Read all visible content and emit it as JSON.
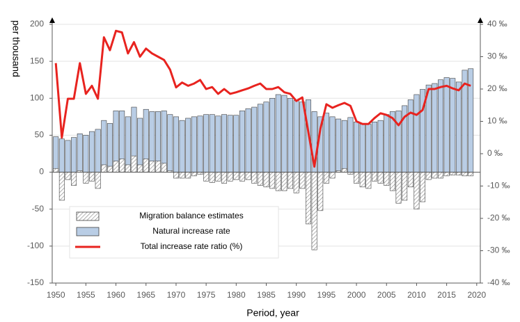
{
  "chart_data": {
    "type": "bar-line",
    "ylabel": "per thousand",
    "xlabel": "Period, year",
    "x": [
      1950,
      1951,
      1952,
      1953,
      1954,
      1955,
      1956,
      1957,
      1958,
      1959,
      1960,
      1961,
      1962,
      1963,
      1964,
      1965,
      1966,
      1967,
      1968,
      1969,
      1970,
      1971,
      1972,
      1973,
      1974,
      1975,
      1976,
      1977,
      1978,
      1979,
      1980,
      1981,
      1982,
      1983,
      1984,
      1985,
      1986,
      1987,
      1988,
      1989,
      1990,
      1991,
      1992,
      1993,
      1994,
      1995,
      1996,
      1997,
      1998,
      1999,
      2000,
      2001,
      2002,
      2003,
      2004,
      2005,
      2006,
      2007,
      2008,
      2009,
      2010,
      2011,
      2012,
      2013,
      2014,
      2015,
      2016,
      2017,
      2018,
      2019
    ],
    "xlim": [
      1949.4,
      2020.6
    ],
    "xticks": [
      1950,
      1955,
      1960,
      1965,
      1970,
      1975,
      1980,
      1985,
      1990,
      1995,
      2000,
      2005,
      2010,
      2015,
      2020
    ],
    "ylim": [
      -150,
      200
    ],
    "yticks": [
      -150,
      -100,
      -50,
      0,
      50,
      100,
      150,
      200
    ],
    "y2lim": [
      -40,
      40
    ],
    "y2ticks": [
      {
        "value": -40,
        "label": "-40 ‰"
      },
      {
        "value": -30,
        "label": "-30 ‰"
      },
      {
        "value": -20,
        "label": "-20 ‰"
      },
      {
        "value": -10,
        "label": "-10 ‰"
      },
      {
        "value": 0,
        "label": "0 ‰"
      },
      {
        "value": 10,
        "label": "10 ‰"
      },
      {
        "value": 20,
        "label": "20 ‰"
      },
      {
        "value": 30,
        "label": "30 ‰"
      },
      {
        "value": 40,
        "label": "40 ‰"
      }
    ],
    "grid": true,
    "legend_position": "lower left",
    "series": [
      {
        "name": "Migration balance estimates",
        "type": "hatched-bar",
        "color": "#7f7f7f",
        "values": [
          5,
          -38,
          -10,
          -18,
          2,
          -15,
          -12,
          -22,
          10,
          8,
          15,
          18,
          10,
          22,
          10,
          18,
          15,
          15,
          12,
          2,
          -8,
          -8,
          -8,
          -5,
          -3,
          -12,
          -14,
          -12,
          -15,
          -12,
          -10,
          -12,
          -10,
          -15,
          -18,
          -20,
          -22,
          -25,
          -25,
          -22,
          -28,
          -22,
          -70,
          -105,
          -52,
          -15,
          -8,
          2,
          5,
          -3,
          -15,
          -20,
          -22,
          -12,
          -15,
          -18,
          -25,
          -42,
          -38,
          -20,
          -50,
          -40,
          -10,
          -8,
          -8,
          -5,
          -4,
          -4,
          -5,
          -5
        ]
      },
      {
        "name": "Natural increase rate",
        "type": "bar",
        "color": "#b9cde5",
        "values": [
          48,
          45,
          43,
          47,
          52,
          50,
          55,
          58,
          70,
          66,
          83,
          83,
          75,
          88,
          73,
          85,
          82,
          82,
          83,
          78,
          75,
          70,
          73,
          75,
          76,
          78,
          78,
          76,
          78,
          77,
          77,
          83,
          86,
          88,
          92,
          95,
          100,
          105,
          104,
          100,
          97,
          95,
          98,
          82,
          75,
          80,
          75,
          72,
          70,
          74,
          68,
          65,
          65,
          68,
          70,
          78,
          82,
          83,
          90,
          98,
          105,
          112,
          118,
          120,
          125,
          128,
          127,
          122,
          138,
          140
        ]
      },
      {
        "name": "Total increase rate ratio (%)",
        "type": "line",
        "axis": "y2",
        "color": "#e8231f",
        "values": [
          28,
          5,
          17,
          17,
          28,
          18.5,
          21,
          17,
          36,
          32,
          38,
          37.5,
          31,
          34.5,
          30,
          32.5,
          31,
          30,
          29,
          26,
          20.5,
          22,
          21,
          21.7,
          22.8,
          20,
          20.6,
          18.5,
          20,
          18.5,
          19,
          19.6,
          20.2,
          21,
          21.7,
          20,
          20,
          20.6,
          19,
          18.5,
          16.3,
          17.4,
          6.7,
          -4,
          7.7,
          15.3,
          14.2,
          15,
          15.7,
          14.8,
          10,
          9.2,
          9.2,
          11,
          12.5,
          12,
          11,
          8.8,
          11.4,
          12.7,
          12,
          13.5,
          20,
          20,
          20.6,
          21,
          20.2,
          19.6,
          21.7,
          21
        ]
      }
    ]
  }
}
